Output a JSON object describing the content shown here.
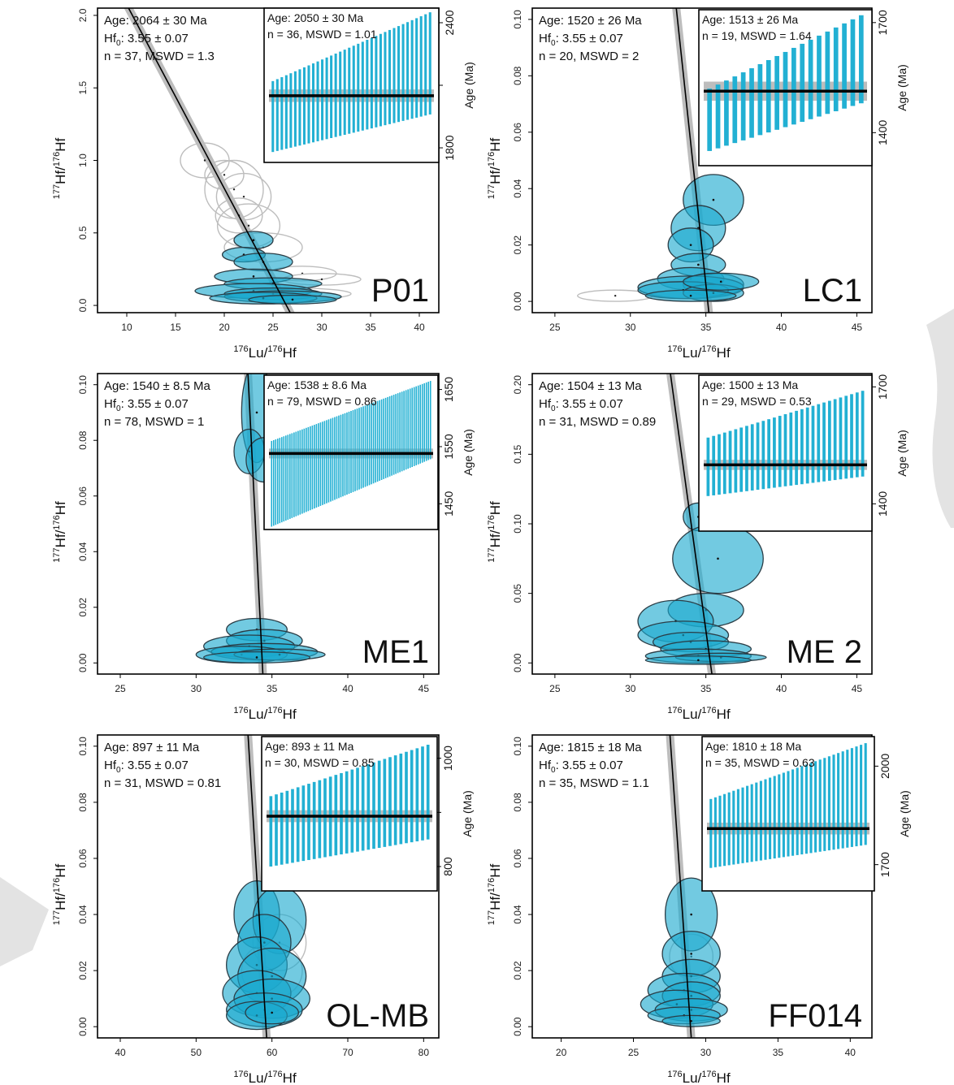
{
  "figure": {
    "colors": {
      "ellipse_fill": "#1ba9cf",
      "ellipse_stroke": "#2b3d46",
      "rejected_ellipse": "#bdbdbd",
      "bar": "#22b0d3",
      "band": "#bdbdbd",
      "line": "#000000"
    }
  },
  "chart_data": [
    {
      "id": "P01",
      "type": "scatter",
      "title": "",
      "sample_label": "P01",
      "xlabel_main": "Lu/",
      "xlabel_sup1": "176",
      "xlabel_sup2": "176",
      "xlabel_tail": "Hf",
      "ylabel_text": "177Hf/176Hf",
      "xlim": [
        7,
        42
      ],
      "ylim": [
        -0.05,
        2.05
      ],
      "xticks": [
        10,
        15,
        20,
        25,
        30,
        35,
        40
      ],
      "yticks": [
        0.0,
        0.5,
        1.0,
        1.5,
        2.0
      ],
      "ytick_labels": [
        "0.0",
        "0.5",
        "1.0",
        "1.5",
        "2.0"
      ],
      "annotation": {
        "age": "Age: 2064 ± 30 Ma",
        "hf": "Hf",
        "hf_sub": "0",
        "hf_rest": ": 3.55 ± 0.07",
        "n": "n = 37, MSWD = 1.3"
      },
      "isochron": {
        "x1": 6,
        "y1": 2.58,
        "x2": 27,
        "y2": -0.08
      },
      "rejected": [
        [
          18,
          1.0,
          2.5,
          0.12
        ],
        [
          20,
          0.9,
          2.0,
          0.1
        ],
        [
          21,
          0.8,
          3.0,
          0.2
        ],
        [
          22,
          0.75,
          2.8,
          0.16
        ],
        [
          21.5,
          0.62,
          2.4,
          0.12
        ],
        [
          22.5,
          0.55,
          3.2,
          0.15
        ],
        [
          24,
          0.4,
          4.0,
          0.1
        ],
        [
          28,
          0.22,
          3.5,
          0.05
        ],
        [
          30,
          0.18,
          4.0,
          0.04
        ],
        [
          27,
          0.08,
          6.0,
          0.04
        ]
      ],
      "data": [
        [
          23,
          0.45,
          2.0,
          0.06
        ],
        [
          22,
          0.35,
          2.2,
          0.05
        ],
        [
          24,
          0.3,
          3.0,
          0.06
        ],
        [
          23,
          0.2,
          4.0,
          0.05
        ],
        [
          25,
          0.15,
          5.0,
          0.04
        ],
        [
          23,
          0.1,
          6.0,
          0.05
        ],
        [
          25,
          0.08,
          5.0,
          0.04
        ],
        [
          26,
          0.06,
          6.0,
          0.04
        ],
        [
          24,
          0.05,
          5.5,
          0.04
        ],
        [
          27,
          0.04,
          4.5,
          0.03
        ]
      ],
      "inset": {
        "age": "Age: 2050 ± 30 Ma",
        "stats": "n = 36, MSWD = 1.01",
        "ylabel": "Age (Ma)",
        "ylim": [
          1730,
          2470
        ],
        "yticks": [
          1800,
          2100,
          2400
        ],
        "ytick_labels": [
          "1800",
          "",
          "2400"
        ],
        "mean": 2050,
        "sd": 30,
        "n": 36,
        "lo_start": 1780,
        "lo_end": 1960,
        "hi_start": 2120,
        "hi_end": 2450
      }
    },
    {
      "id": "LC1",
      "type": "scatter",
      "title": "",
      "sample_label": "LC1",
      "xlabel_main": "Lu/",
      "xlabel_sup1": "176",
      "xlabel_sup2": "176",
      "xlabel_tail": "Hf",
      "ylabel_text": "177Hf/176Hf",
      "xlim": [
        23.5,
        46
      ],
      "ylim": [
        -0.004,
        0.104
      ],
      "xticks": [
        25,
        30,
        35,
        40,
        45
      ],
      "yticks": [
        0.0,
        0.02,
        0.04,
        0.06,
        0.08,
        0.1
      ],
      "ytick_labels": [
        "0.00",
        "0.02",
        "0.04",
        "0.06",
        "0.08",
        "0.10"
      ],
      "annotation": {
        "age": "Age: 1520 ± 26 Ma",
        "hf": "Hf",
        "hf_sub": "0",
        "hf_rest": ": 3.55 ± 0.07",
        "n": "n = 20, MSWD = 2"
      },
      "isochron": {
        "x1": 33.0,
        "y1": 0.106,
        "x2": 35.2,
        "y2": -0.004
      },
      "rejected": [
        [
          29,
          0.002,
          2.5,
          0.002
        ]
      ],
      "data": [
        [
          35.5,
          0.036,
          2.0,
          0.009
        ],
        [
          34.5,
          0.026,
          1.8,
          0.008
        ],
        [
          34,
          0.02,
          1.5,
          0.006
        ],
        [
          34.5,
          0.013,
          1.8,
          0.004
        ],
        [
          34,
          0.008,
          2.2,
          0.004
        ],
        [
          35.5,
          0.006,
          2.0,
          0.004
        ],
        [
          34,
          0.005,
          3.5,
          0.004
        ],
        [
          33.5,
          0.004,
          3.0,
          0.003
        ],
        [
          35.5,
          0.003,
          2.0,
          0.003
        ],
        [
          36,
          0.007,
          2.5,
          0.003
        ],
        [
          34,
          0.002,
          3.0,
          0.002
        ]
      ],
      "inset": {
        "age": "Age: 1513 ± 26 Ma",
        "stats": "n = 19, MSWD = 1.64",
        "ylabel": "Age (Ma)",
        "ylim": [
          1310,
          1735
        ],
        "yticks": [
          1400,
          1700
        ],
        "ytick_labels": [
          "1400",
          "1700"
        ],
        "mean": 1513,
        "sd": 26,
        "n": 19,
        "lo_start": 1350,
        "lo_end": 1480,
        "hi_start": 1520,
        "hi_end": 1720
      }
    },
    {
      "id": "ME1",
      "type": "scatter",
      "title": "",
      "sample_label": "ME1",
      "xlabel_main": "Lu/",
      "xlabel_sup1": "176",
      "xlabel_sup2": "176",
      "xlabel_tail": "Hf",
      "ylabel_text": "177Hf/176Hf",
      "xlim": [
        23.5,
        46
      ],
      "ylim": [
        -0.004,
        0.104
      ],
      "xticks": [
        25,
        30,
        35,
        40,
        45
      ],
      "yticks": [
        0.0,
        0.02,
        0.04,
        0.06,
        0.08,
        0.1
      ],
      "ytick_labels": [
        "0.00",
        "0.02",
        "0.04",
        "0.06",
        "0.08",
        "0.10"
      ],
      "annotation": {
        "age": "Age: 1540 ± 8.5 Ma",
        "hf": "Hf",
        "hf_sub": "0",
        "hf_rest": ": 3.55 ± 0.07",
        "n": "n = 78, MSWD = 1"
      },
      "isochron": {
        "x1": 33.4,
        "y1": 0.106,
        "x2": 34.4,
        "y2": -0.004
      },
      "rejected": [],
      "data": [
        [
          34,
          0.09,
          1.0,
          0.018
        ],
        [
          33.5,
          0.076,
          1.0,
          0.008
        ],
        [
          34.5,
          0.073,
          1.2,
          0.008
        ],
        [
          34,
          0.012,
          2.0,
          0.004
        ],
        [
          34.5,
          0.008,
          2.5,
          0.004
        ],
        [
          33.5,
          0.006,
          3.0,
          0.004
        ],
        [
          34.5,
          0.004,
          3.5,
          0.003
        ],
        [
          33,
          0.003,
          3.0,
          0.003
        ],
        [
          35.5,
          0.003,
          3.0,
          0.002
        ],
        [
          34,
          0.002,
          3.5,
          0.002
        ]
      ],
      "inset": {
        "age": "Age: 1538 ± 8.6 Ma",
        "stats": "n = 79, MSWD = 0.86",
        "ylabel": "Age (Ma)",
        "ylim": [
          1405,
          1675
        ],
        "yticks": [
          1450,
          1550,
          1650
        ],
        "ytick_labels": [
          "1450",
          "1550",
          "1650"
        ],
        "mean": 1538,
        "sd": 8.6,
        "n": 79,
        "lo_start": 1410,
        "lo_end": 1528,
        "hi_start": 1560,
        "hi_end": 1665
      }
    },
    {
      "id": "ME2",
      "type": "scatter",
      "title": "",
      "sample_label": "ME 2",
      "xlabel_main": "Lu/",
      "xlabel_sup1": "176",
      "xlabel_sup2": "176",
      "xlabel_tail": "Hf",
      "ylabel_text": "177Hf/176Hf",
      "xlim": [
        23.5,
        46
      ],
      "ylim": [
        -0.008,
        0.208
      ],
      "xticks": [
        25,
        30,
        35,
        40,
        45
      ],
      "yticks": [
        0.0,
        0.05,
        0.1,
        0.15,
        0.2
      ],
      "ytick_labels": [
        "0.00",
        "0.05",
        "0.10",
        "0.15",
        "0.20"
      ],
      "annotation": {
        "age": "Age: 1504 ± 13 Ma",
        "hf": "Hf",
        "hf_sub": "0",
        "hf_rest": ": 3.55 ± 0.07",
        "n": "n = 31, MSWD = 0.89"
      },
      "isochron": {
        "x1": 32.6,
        "y1": 0.212,
        "x2": 35.4,
        "y2": -0.008
      },
      "rejected": [],
      "data": [
        [
          34.5,
          0.105,
          1.0,
          0.01
        ],
        [
          35.8,
          0.075,
          3.0,
          0.025
        ],
        [
          35,
          0.038,
          2.5,
          0.012
        ],
        [
          33,
          0.03,
          2.5,
          0.015
        ],
        [
          33.5,
          0.02,
          3.0,
          0.01
        ],
        [
          34,
          0.015,
          2.5,
          0.007
        ],
        [
          35,
          0.01,
          3.0,
          0.006
        ],
        [
          34.5,
          0.005,
          3.5,
          0.005
        ],
        [
          36,
          0.004,
          3.0,
          0.003
        ],
        [
          34.5,
          0.002,
          3.5,
          0.003
        ]
      ],
      "inset": {
        "age": "Age: 1500 ± 13 Ma",
        "stats": "n = 29, MSWD = 0.53",
        "ylabel": "Age (Ma)",
        "ylim": [
          1330,
          1730
        ],
        "yticks": [
          1400,
          1700
        ],
        "ytick_labels": [
          "1400",
          "1700"
        ],
        "mean": 1500,
        "sd": 13,
        "n": 29,
        "lo_start": 1420,
        "lo_end": 1470,
        "hi_start": 1570,
        "hi_end": 1690
      }
    },
    {
      "id": "OL-MB",
      "type": "scatter",
      "title": "",
      "sample_label": "OL-MB",
      "xlabel_main": "Lu/",
      "xlabel_sup1": "176",
      "xlabel_sup2": "176",
      "xlabel_tail": "Hf",
      "ylabel_text": "177Hf/176Hf",
      "xlim": [
        37,
        82
      ],
      "ylim": [
        -0.004,
        0.104
      ],
      "xticks": [
        40,
        50,
        60,
        70,
        80
      ],
      "yticks": [
        0.0,
        0.02,
        0.04,
        0.06,
        0.08,
        0.1
      ],
      "ytick_labels": [
        "0.00",
        "0.02",
        "0.04",
        "0.06",
        "0.08",
        "0.10"
      ],
      "annotation": {
        "age": "Age: 897 ± 11 Ma",
        "hf": "Hf",
        "hf_sub": "0",
        "hf_rest": ": 3.55 ± 0.07",
        "n": "n = 31, MSWD = 0.81"
      },
      "isochron": {
        "x1": 56.8,
        "y1": 0.106,
        "x2": 59.3,
        "y2": -0.004
      },
      "rejected": [
        [
          60,
          0.02,
          4.0,
          0.01
        ],
        [
          61,
          0.03,
          3.5,
          0.01
        ]
      ],
      "data": [
        [
          58,
          0.04,
          3.0,
          0.012
        ],
        [
          61,
          0.038,
          3.5,
          0.012
        ],
        [
          59,
          0.03,
          3.5,
          0.01
        ],
        [
          58,
          0.022,
          4.0,
          0.01
        ],
        [
          60,
          0.018,
          4.5,
          0.01
        ],
        [
          58,
          0.012,
          4.5,
          0.008
        ],
        [
          60,
          0.01,
          5.0,
          0.007
        ],
        [
          59,
          0.006,
          5.0,
          0.006
        ],
        [
          58,
          0.004,
          4.0,
          0.005
        ],
        [
          60,
          0.005,
          3.5,
          0.004
        ]
      ],
      "inset": {
        "age": "Age: 893 ± 11 Ma",
        "stats": "n = 30, MSWD = 0.85",
        "ylabel": "Age (Ma)",
        "ylim": [
          755,
          1040
        ],
        "yticks": [
          800,
          900,
          1000
        ],
        "ytick_labels": [
          "800",
          "",
          "1000"
        ],
        "mean": 893,
        "sd": 11,
        "n": 30,
        "lo_start": 800,
        "lo_end": 850,
        "hi_start": 930,
        "hi_end": 1025
      }
    },
    {
      "id": "FF014",
      "type": "scatter",
      "title": "",
      "sample_label": "FF014",
      "xlabel_main": "Lu/",
      "xlabel_sup1": "176",
      "xlabel_sup2": "176",
      "xlabel_tail": "Hf",
      "ylabel_text": "177Hf/176Hf",
      "xlim": [
        18,
        41.5
      ],
      "ylim": [
        -0.004,
        0.104
      ],
      "xticks": [
        20,
        25,
        30,
        35,
        40
      ],
      "yticks": [
        0.0,
        0.02,
        0.04,
        0.06,
        0.08,
        0.1
      ],
      "ytick_labels": [
        "0.00",
        "0.02",
        "0.04",
        "0.06",
        "0.08",
        "0.10"
      ],
      "annotation": {
        "age": "Age: 1815 ± 18 Ma",
        "hf": "Hf",
        "hf_sub": "0",
        "hf_rest": ": 3.55 ± 0.07",
        "n": "n = 35, MSWD = 1.1"
      },
      "isochron": {
        "x1": 27.5,
        "y1": 0.106,
        "x2": 29.0,
        "y2": -0.004
      },
      "rejected": [
        [
          29,
          0.025,
          1.5,
          0.008
        ]
      ],
      "data": [
        [
          29,
          0.04,
          1.8,
          0.013
        ],
        [
          29,
          0.026,
          2.0,
          0.008
        ],
        [
          29,
          0.018,
          2.0,
          0.006
        ],
        [
          28.5,
          0.013,
          2.5,
          0.006
        ],
        [
          29,
          0.011,
          2.0,
          0.005
        ],
        [
          28,
          0.008,
          2.5,
          0.005
        ],
        [
          29,
          0.006,
          2.5,
          0.004
        ],
        [
          28.5,
          0.004,
          2.5,
          0.003
        ],
        [
          29,
          0.002,
          2.0,
          0.002
        ]
      ],
      "inset": {
        "age": "Age: 1810 ± 18 Ma",
        "stats": "n = 35, MSWD = 0.63",
        "ylabel": "Age (Ma)",
        "ylim": [
          1620,
          2090
        ],
        "yticks": [
          1700,
          2000
        ],
        "ytick_labels": [
          "1700",
          "2000"
        ],
        "mean": 1810,
        "sd": 18,
        "n": 35,
        "lo_start": 1690,
        "lo_end": 1760,
        "hi_start": 1900,
        "hi_end": 2070
      }
    }
  ]
}
